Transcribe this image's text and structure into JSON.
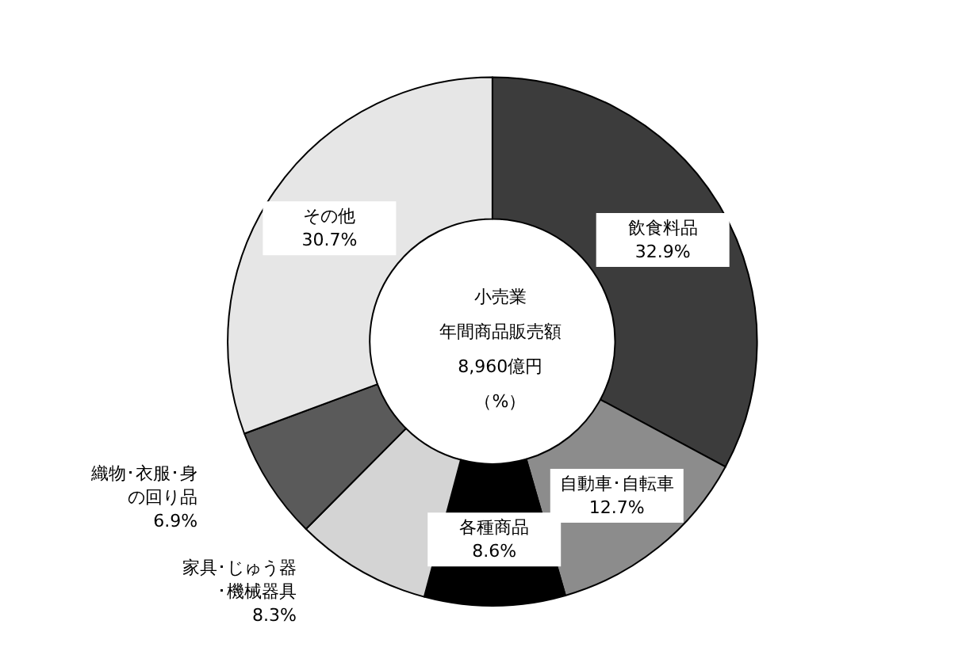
{
  "chart_data": {
    "type": "donut",
    "title": "小売業",
    "subtitle": "年間商品販売額",
    "annotations": [
      "8,960億円",
      "（%）"
    ],
    "categories": [
      "飲食料品",
      "自動車･自転車",
      "各種商品",
      "家具･じゅう器･機械器具",
      "織物･衣服･身の回り品",
      "その他"
    ],
    "values": [
      32.9,
      12.7,
      8.6,
      8.3,
      6.9,
      30.7
    ],
    "value_labels": [
      "32.9%",
      "12.7%",
      "8.6%",
      "8.3%",
      "6.9%",
      "30.7%"
    ],
    "colors": [
      "#3c3c3c",
      "#8c8c8c",
      "#000000",
      "#d4d4d4",
      "#5a5a5a",
      "#e6e6e6"
    ],
    "legend": false
  }
}
